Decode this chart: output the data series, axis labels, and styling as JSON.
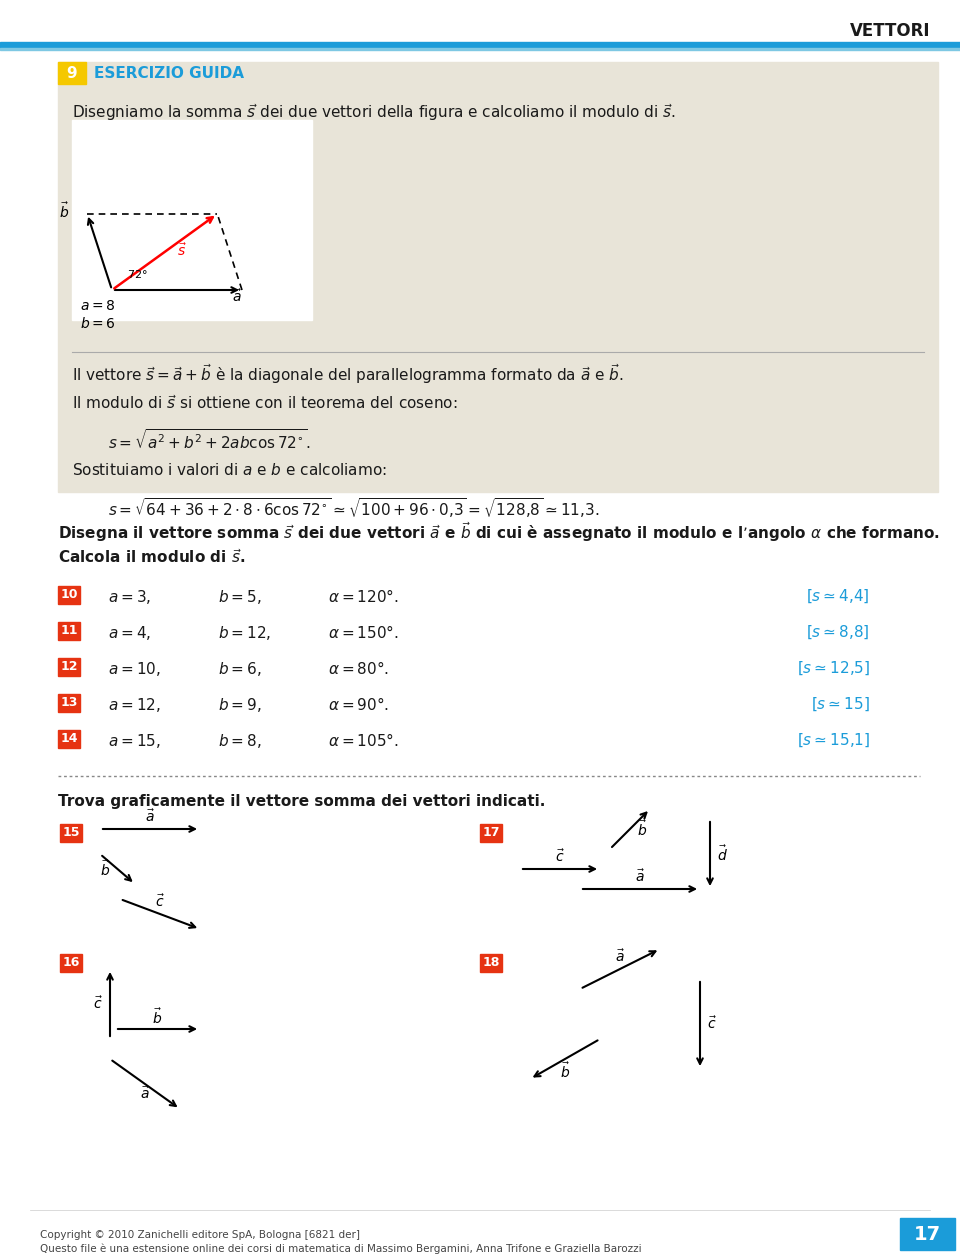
{
  "title": "VETTORI",
  "page_number": "17",
  "bg_color": "#ffffff",
  "header_line_color": "#1b9cd9",
  "box_bg": "#e8e4d8",
  "box_number": "9",
  "box_label": "ESERCIZIO GUIDA",
  "box_title": "Disegniamo la somma $\\vec{s}$ dei due vettori della figura e calcoliamo il modulo di $\\vec{s}$.",
  "diagram_bg": "#f5f5f0",
  "text1": "Il vettore $\\vec{s} = \\vec{a} + \\vec{b}$ è la diagonale del parallelogramma formato da $\\vec{a}$ e $\\vec{b}$.",
  "text2": "Il modulo di $\\vec{s}$ si ottiene con il teorema del coseno:",
  "formula1": "$s = \\sqrt{a^2 + b^2 + 2ab\\cos 72^{\\circ}}.$",
  "text3": "Sostituiamo i valori di $a$ e $b$ e calcoliamo:",
  "formula2": "$s = \\sqrt{64 + 36 + 2 \\cdot 8 \\cdot 6 \\cos 72^{\\circ}} \\simeq \\sqrt{100 + 96 \\cdot 0{,}3} = \\sqrt{128{,}8} \\simeq 11{,}3.$",
  "section_title": "Disegna il vettore somma $\\vec{s}$ dei due vettori $\\vec{a}$ e $\\vec{b}$ di cui è assegnato il modulo e l’angolo $\\alpha$ che formano.",
  "section_title2": "Calcola il modulo di $\\vec{s}$.",
  "exercises": [
    {
      "num": "10",
      "a": 3,
      "b": 5,
      "alpha": "120",
      "result": "$[s \\simeq 4{,}4]$"
    },
    {
      "num": "11",
      "a": 4,
      "b": 12,
      "alpha": "150",
      "result": "$[s \\simeq 8{,}8]$"
    },
    {
      "num": "12",
      "a": 10,
      "b": 6,
      "alpha": "80",
      "result": "$[s \\simeq 12{,}5]$"
    },
    {
      "num": "13",
      "a": 12,
      "b": 9,
      "alpha": "90",
      "result": "$[s \\simeq 15]$"
    },
    {
      "num": "14",
      "a": 15,
      "b": 8,
      "alpha": "105",
      "result": "$[s \\simeq 15{,}1]$"
    }
  ],
  "dotted_line_y": 0.385,
  "section2_title": "Trova graficamente il vettore somma dei vettori indicati.",
  "yellow_color": "#f5c800",
  "red_number_bg": "#e63312",
  "blue_color": "#1b9cd9",
  "footer_text": "Copyright © 2010 Zanichelli editore SpA, Bologna [6821 der]",
  "footer_text2": "Questo file è una estensione online dei corsi di matematica di Massimo Bergamini, Anna Trifone e Graziella Barozzi"
}
